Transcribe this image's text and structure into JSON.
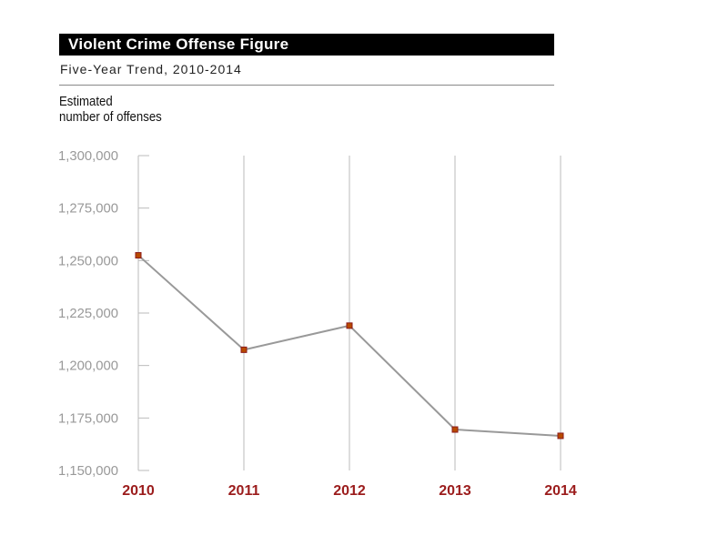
{
  "header": {
    "title": "Violent Crime Offense Figure",
    "subtitle": "Five-Year Trend, 2010-2014",
    "ylabel_line1": "Estimated",
    "ylabel_line2": "number of offenses"
  },
  "colors": {
    "line": "#999999",
    "marker_fill": "#b84a00",
    "marker_stroke": "#8b1a1a",
    "xtick": "#9b1c1c",
    "grid": "#bbbbbb"
  },
  "chart_data": {
    "type": "line",
    "categories": [
      "2010",
      "2011",
      "2012",
      "2013",
      "2014"
    ],
    "series": [
      {
        "values": [
          1252500,
          1207500,
          1219000,
          1169500,
          1166500
        ]
      }
    ],
    "ylim": [
      1150000,
      1300000
    ],
    "yticks": [
      1150000,
      1175000,
      1200000,
      1225000,
      1250000,
      1275000,
      1300000
    ],
    "ytick_labels": [
      "1,150,000",
      "1,175,000",
      "1,200,000",
      "1,225,000",
      "1,250,000",
      "1,275,000",
      "1,300,000"
    ],
    "grid": "vertical",
    "title": "Violent Crime Offense Figure",
    "subtitle": "Five-Year Trend, 2010-2014",
    "ylabel": "Estimated number of offenses"
  }
}
